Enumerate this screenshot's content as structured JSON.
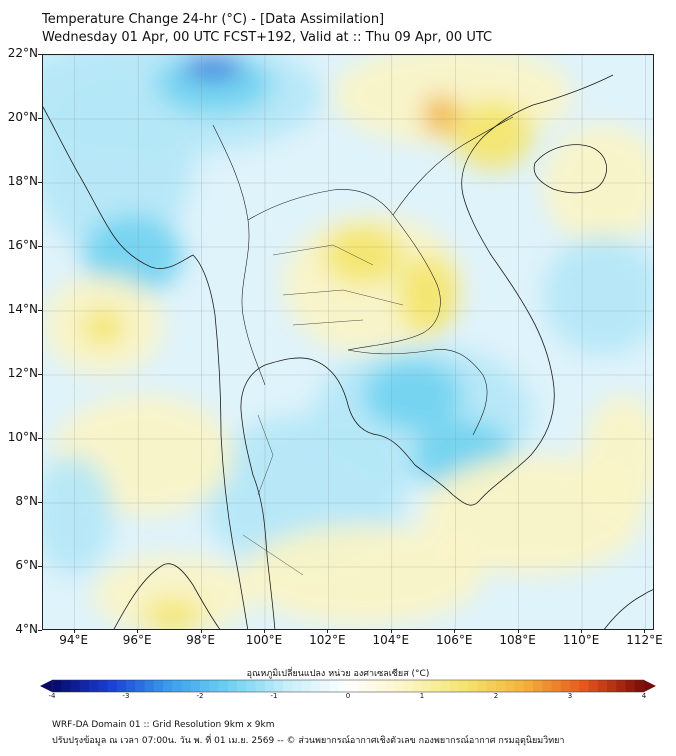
{
  "title": {
    "line1": "Temperature Change 24-hr (°C) - [Data Assimilation]",
    "line2": "Wednesday 01 Apr, 00 UTC FCST+192, Valid at :: Thu 09 Apr, 00 UTC"
  },
  "map": {
    "lat_ticks": [
      "22°N",
      "20°N",
      "18°N",
      "16°N",
      "14°N",
      "12°N",
      "10°N",
      "8°N",
      "6°N",
      "4°N"
    ],
    "lon_ticks": [
      "94°E",
      "96°E",
      "98°E",
      "100°E",
      "102°E",
      "104°E",
      "106°E",
      "108°E",
      "110°E",
      "112°E"
    ],
    "lat_range": [
      4,
      22
    ],
    "lon_range": [
      93,
      112.3
    ],
    "colors": {
      "base": "#dff3fb",
      "light_blue": "#b4e7f7",
      "cyan": "#6fd2f1",
      "blue": "#38b8ef",
      "deep_blue": "#2f6fd8",
      "pale_yellow": "#fbf4c4",
      "yellow": "#f4e46a",
      "orange": "#f2b13a",
      "coast": "#1e1e1e"
    }
  },
  "colorbar": {
    "label": "อุณหภูมิเปลี่ยนแปลง หน่วย องศาเซลเซียส (°C)",
    "ticks": [
      "-4",
      "-3",
      "-2",
      "-1",
      "0",
      "1",
      "2",
      "3",
      "4"
    ],
    "range": [
      -4,
      4
    ],
    "stops": [
      "#08086b",
      "#1a3fd6",
      "#3aa0ee",
      "#6fd2f1",
      "#c9eefa",
      "#ffffff",
      "#fbf4c4",
      "#f4e46a",
      "#f2b13a",
      "#e8551c",
      "#7a0a0a"
    ]
  },
  "footer": {
    "line1": "WRF-DA Domain 01 :: Grid Resolution 9km x 9km",
    "line2": "ปรับปรุงข้อมูล ณ เวลา 07:00น. วัน พ. ที่ 01 เม.ย. 2569 -- © ส่วนพยากรณ์อากาศเชิงตัวเลข กองพยากรณ์อากาศ กรมอุตุนิยมวิทยา"
  }
}
